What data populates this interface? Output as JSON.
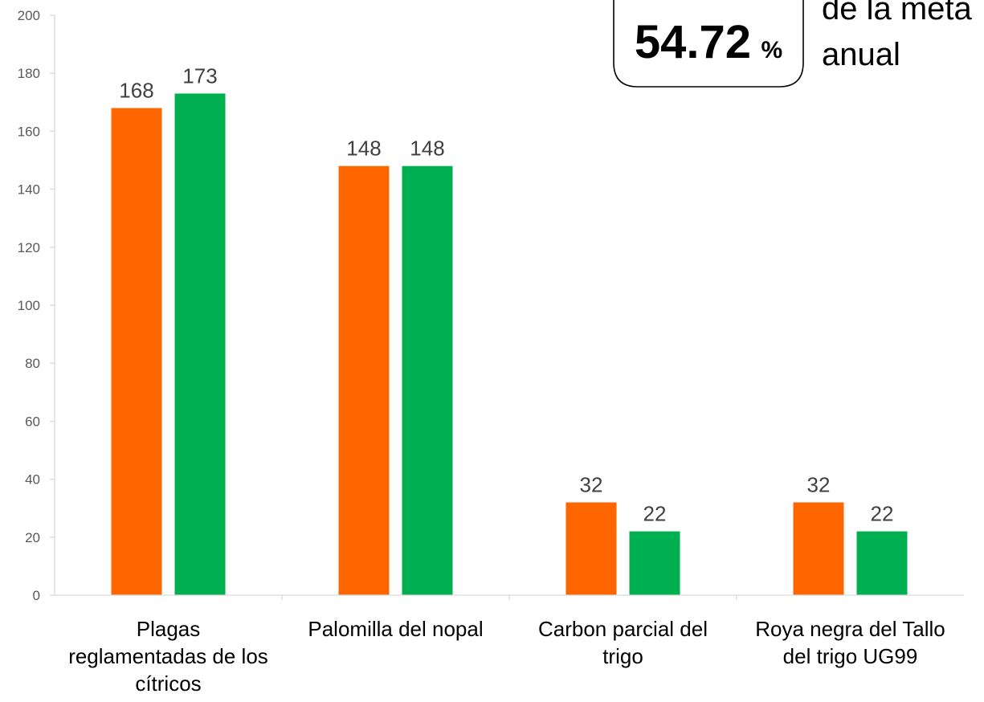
{
  "chart_data": {
    "type": "bar",
    "categories": [
      [
        "Plagas",
        "reglamentadas de los",
        "cítricos"
      ],
      [
        "Palomilla del nopal"
      ],
      [
        "Carbon parcial del",
        "trigo"
      ],
      [
        "Roya negra del Tallo",
        "del trigo UG99"
      ]
    ],
    "series": [
      {
        "color": "#FF6600",
        "values": [
          168,
          148,
          32,
          32
        ]
      },
      {
        "color": "#00B050",
        "values": [
          173,
          148,
          22,
          22
        ]
      }
    ],
    "ylim": [
      0,
      200
    ],
    "yticks": [
      0,
      20,
      40,
      60,
      80,
      100,
      120,
      140,
      160,
      180,
      200
    ],
    "grid": false,
    "legend": "none"
  },
  "callout": {
    "value": "54.72",
    "unit": "%",
    "text_line1": "de la meta",
    "text_line2": "anual"
  }
}
